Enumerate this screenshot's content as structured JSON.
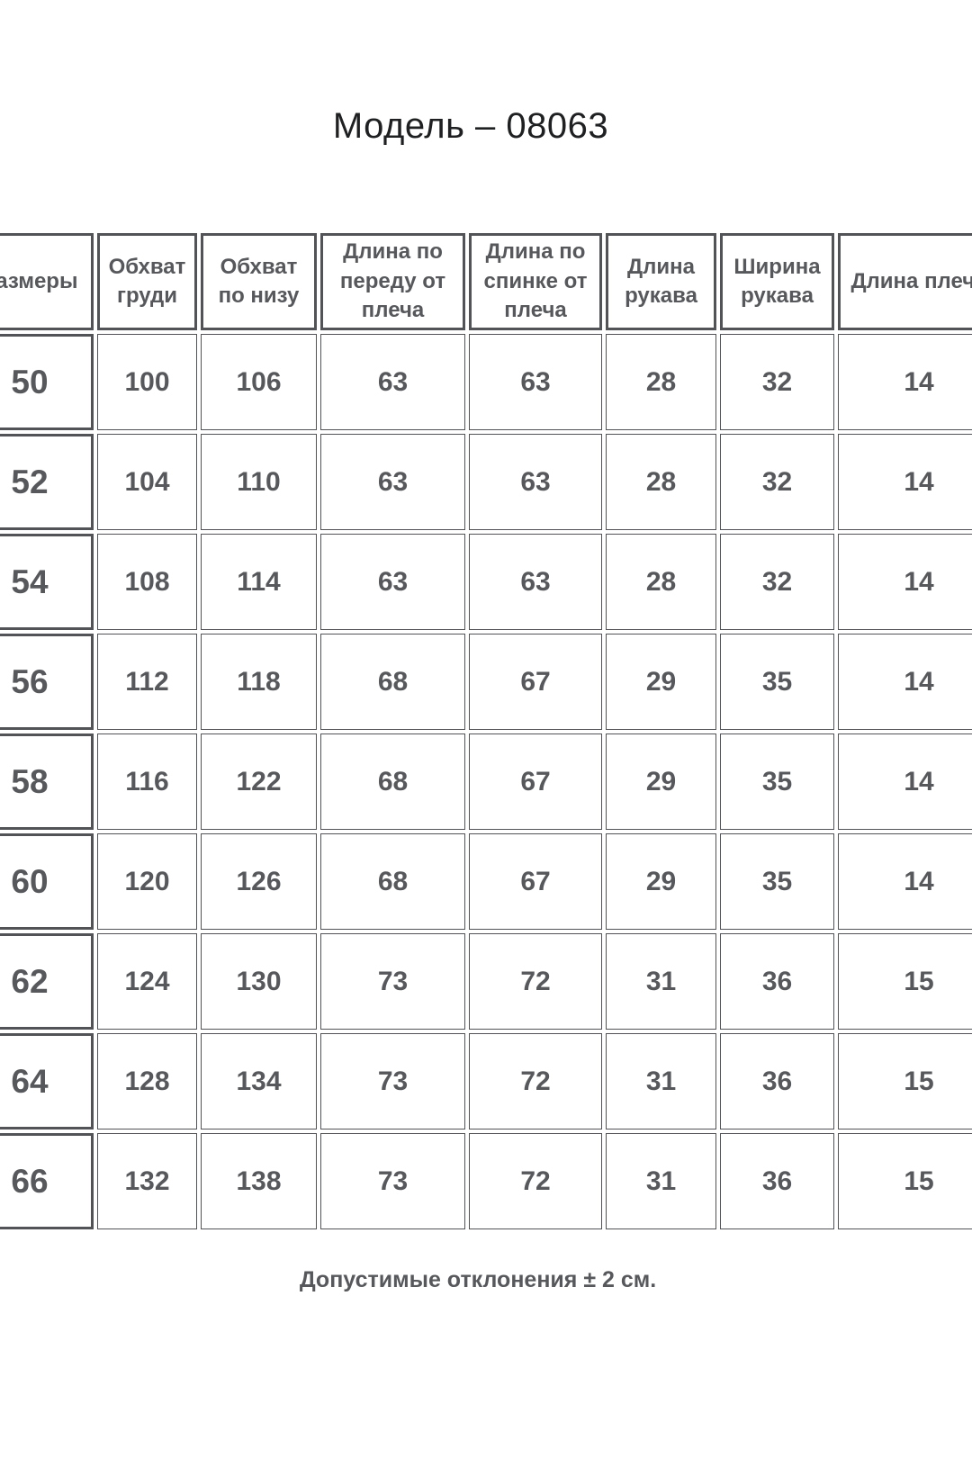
{
  "page": {
    "title": "Модель – 08063",
    "note": "Допустимые отклонения ± 2 см."
  },
  "table": {
    "headers": [
      "Размеры",
      "Обхват груди",
      "Обхват по низу",
      "Длина по переду от плеча",
      "Длина по спинке от плеча",
      "Длина рукава",
      "Ширина рукава",
      "Длина плеча"
    ],
    "rows": [
      {
        "size": "50",
        "values": [
          "100",
          "106",
          "63",
          "63",
          "28",
          "32",
          "14"
        ]
      },
      {
        "size": "52",
        "values": [
          "104",
          "110",
          "63",
          "63",
          "28",
          "32",
          "14"
        ]
      },
      {
        "size": "54",
        "values": [
          "108",
          "114",
          "63",
          "63",
          "28",
          "32",
          "14"
        ]
      },
      {
        "size": "56",
        "values": [
          "112",
          "118",
          "68",
          "67",
          "29",
          "35",
          "14"
        ]
      },
      {
        "size": "58",
        "values": [
          "116",
          "122",
          "68",
          "67",
          "29",
          "35",
          "14"
        ]
      },
      {
        "size": "60",
        "values": [
          "120",
          "126",
          "68",
          "67",
          "29",
          "35",
          "14"
        ]
      },
      {
        "size": "62",
        "values": [
          "124",
          "130",
          "73",
          "72",
          "31",
          "36",
          "15"
        ]
      },
      {
        "size": "64",
        "values": [
          "128",
          "134",
          "73",
          "72",
          "31",
          "36",
          "15"
        ]
      },
      {
        "size": "66",
        "values": [
          "132",
          "138",
          "73",
          "72",
          "31",
          "36",
          "15"
        ]
      }
    ]
  },
  "colors": {
    "background": "#ffffff",
    "title_text": "#1f2022",
    "table_text": "#56585b",
    "table_border": "#515356"
  }
}
